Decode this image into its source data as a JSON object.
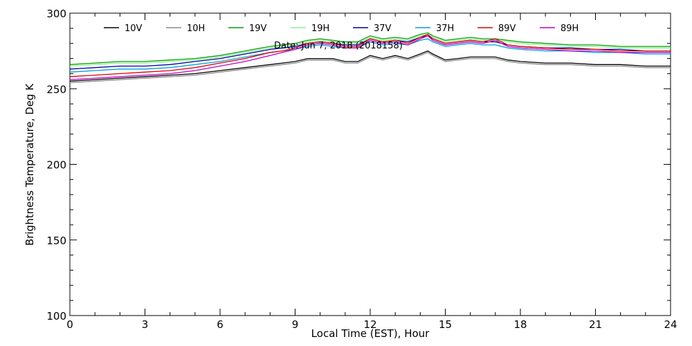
{
  "chart_data": {
    "type": "line",
    "title": "",
    "annotation": "Date: Jun  7, 2018  (2018158)",
    "xlabel": "Local Time (EST), Hour",
    "ylabel": "Brightness Temperature, Deg  K",
    "xlim": [
      0,
      24
    ],
    "ylim": [
      100,
      300
    ],
    "x_ticks": [
      0,
      3,
      6,
      9,
      12,
      15,
      18,
      21,
      24
    ],
    "y_ticks": [
      100,
      150,
      200,
      250,
      300
    ],
    "grid": false,
    "legend_position": "top, horizontal",
    "x": [
      0,
      1,
      2,
      3,
      4,
      5,
      6,
      7,
      8,
      8.5,
      9,
      9.5,
      10,
      10.5,
      11,
      11.5,
      12,
      12.5,
      13,
      13.5,
      14,
      14.3,
      14.5,
      15,
      15.5,
      16,
      16.5,
      17,
      17.5,
      18,
      19,
      20,
      21,
      22,
      23,
      24
    ],
    "series": [
      {
        "name": "10V",
        "color": "#000000",
        "values": [
          255,
          256,
          257,
          258,
          259,
          260,
          262,
          264,
          266,
          267,
          268,
          270,
          270,
          270,
          268,
          268,
          272,
          270,
          272,
          270,
          273,
          275,
          273,
          269,
          270,
          271,
          271,
          271,
          269,
          268,
          267,
          267,
          266,
          266,
          265,
          265
        ]
      },
      {
        "name": "10H",
        "color": "#888888",
        "values": [
          254,
          255,
          256,
          257,
          258,
          259,
          261,
          263,
          265,
          266,
          267,
          269,
          269,
          269,
          267,
          267,
          271,
          269,
          271,
          269,
          272,
          274,
          272,
          268,
          269,
          270,
          270,
          270,
          268,
          267,
          266,
          266,
          265,
          265,
          264,
          264
        ]
      },
      {
        "name": "19V",
        "color": "#00a000",
        "values": [
          266,
          267,
          268,
          268,
          269,
          270,
          272,
          275,
          278,
          279,
          280,
          282,
          283,
          282,
          281,
          281,
          285,
          283,
          284,
          283,
          286,
          287,
          285,
          282,
          283,
          284,
          283,
          283,
          282,
          281,
          280,
          279,
          279,
          278,
          278,
          278
        ]
      },
      {
        "name": "19H",
        "color": "#90ee90",
        "values": [
          265,
          266,
          267,
          267,
          268,
          269,
          271,
          274,
          277,
          278,
          279,
          281,
          282,
          281,
          280,
          280,
          284,
          282,
          283,
          282,
          285,
          286,
          284,
          281,
          282,
          283,
          282,
          282,
          281,
          280,
          279,
          278,
          278,
          277,
          277,
          277
        ]
      },
      {
        "name": "37V",
        "color": "#0000aa",
        "values": [
          263,
          264,
          265,
          265,
          266,
          268,
          270,
          273,
          276,
          277,
          278,
          280,
          281,
          280,
          279,
          279,
          283,
          281,
          282,
          281,
          284,
          285,
          283,
          280,
          281,
          282,
          281,
          281,
          279,
          278,
          277,
          277,
          276,
          276,
          275,
          275
        ]
      },
      {
        "name": "37H",
        "color": "#00a0e0",
        "values": [
          261,
          262,
          263,
          263,
          264,
          266,
          268,
          271,
          274,
          275,
          276,
          278,
          279,
          278,
          277,
          277,
          281,
          279,
          280,
          279,
          282,
          283,
          281,
          278,
          279,
          280,
          279,
          279,
          277,
          276,
          275,
          275,
          274,
          274,
          273,
          273
        ]
      },
      {
        "name": "89V",
        "color": "#e00000",
        "values": [
          258,
          259,
          260,
          261,
          262,
          264,
          267,
          270,
          274,
          275,
          277,
          280,
          281,
          280,
          278,
          278,
          283,
          281,
          282,
          280,
          284,
          286,
          283,
          280,
          281,
          282,
          281,
          283,
          279,
          278,
          277,
          276,
          276,
          275,
          275,
          275
        ]
      },
      {
        "name": "89H",
        "color": "#c000c0",
        "values": [
          256,
          257,
          258,
          259,
          260,
          262,
          265,
          268,
          272,
          274,
          276,
          279,
          280,
          279,
          277,
          277,
          282,
          280,
          281,
          279,
          283,
          285,
          282,
          279,
          280,
          281,
          280,
          282,
          278,
          277,
          276,
          275,
          275,
          274,
          274,
          274
        ]
      }
    ]
  }
}
